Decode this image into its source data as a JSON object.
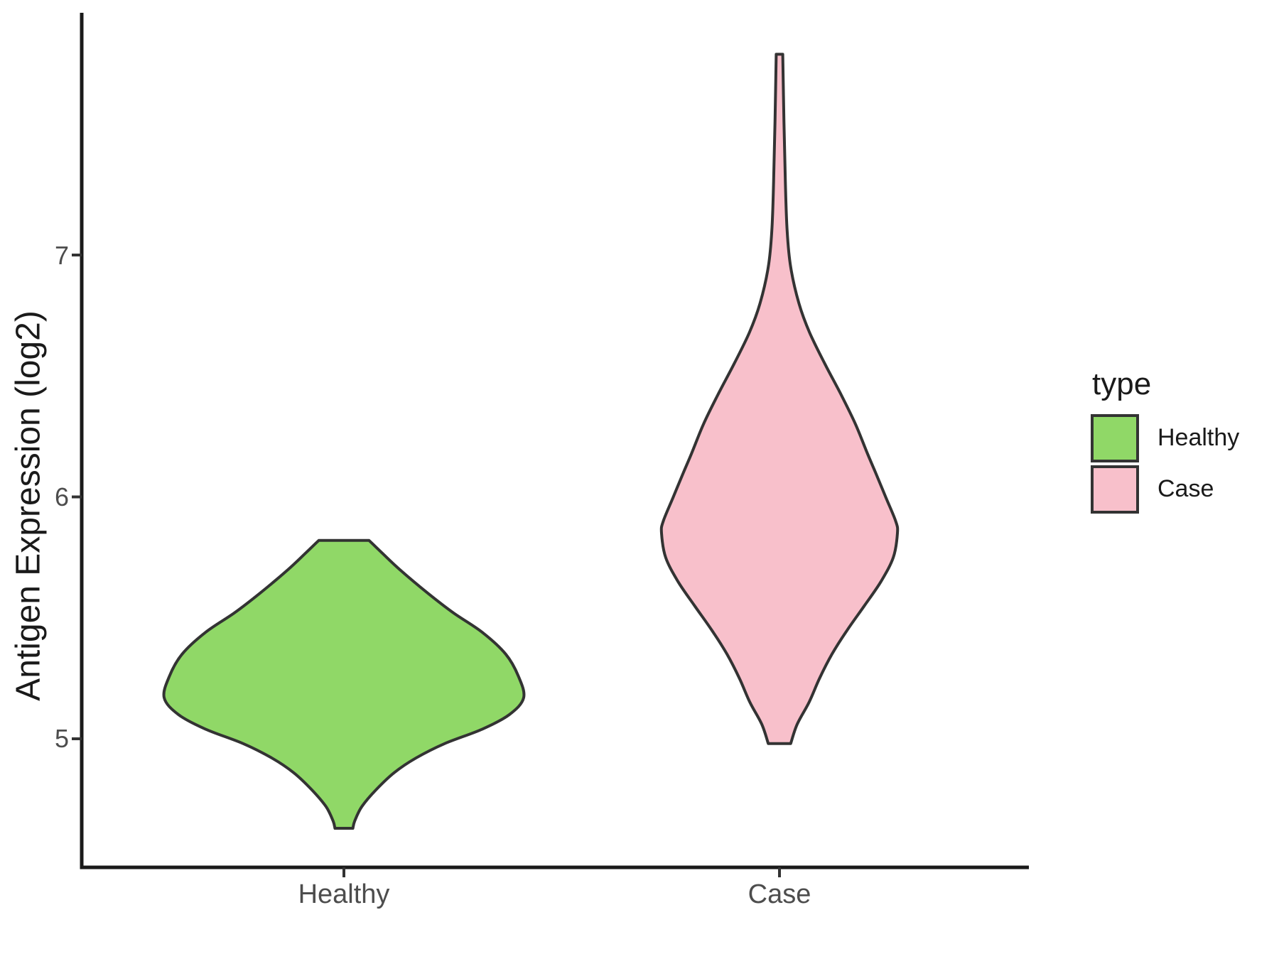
{
  "window": {
    "background": "#FFFFFF"
  },
  "axis_style": {
    "line_color": "#1A1A1A",
    "tick_color": "#333333",
    "tick_label_color": "#4D4D4D",
    "title_color": "#1A1A1A"
  },
  "chart_data": {
    "type": "violin",
    "title": "",
    "xlabel": "",
    "ylabel": "Antigen Expression (log2)",
    "categories": [
      "Healthy",
      "Case"
    ],
    "y_ticks": [
      5,
      6,
      7
    ],
    "ylim": [
      4.45,
      8.0
    ],
    "grid": false,
    "legend": {
      "title": "type",
      "position": "right"
    },
    "series": [
      {
        "name": "Healthy",
        "fill": "#90D867",
        "outline": "#333333",
        "value_range": [
          4.63,
          5.82
        ],
        "peak_value": 5.17,
        "profile": [
          [
            5.82,
            0.14
          ],
          [
            5.77,
            0.21
          ],
          [
            5.7,
            0.31
          ],
          [
            5.6,
            0.47
          ],
          [
            5.52,
            0.61
          ],
          [
            5.44,
            0.77
          ],
          [
            5.35,
            0.9
          ],
          [
            5.26,
            0.97
          ],
          [
            5.17,
            1.0
          ],
          [
            5.1,
            0.92
          ],
          [
            5.04,
            0.77
          ],
          [
            4.98,
            0.56
          ],
          [
            4.92,
            0.4
          ],
          [
            4.86,
            0.28
          ],
          [
            4.79,
            0.18
          ],
          [
            4.72,
            0.1
          ],
          [
            4.66,
            0.06
          ],
          [
            4.63,
            0.05
          ]
        ]
      },
      {
        "name": "Case",
        "fill": "#F8C0CB",
        "outline": "#333333",
        "value_range": [
          4.98,
          7.83
        ],
        "peak_value": 5.85,
        "profile": [
          [
            7.83,
            0.028
          ],
          [
            7.55,
            0.038
          ],
          [
            7.3,
            0.05
          ],
          [
            7.1,
            0.065
          ],
          [
            6.95,
            0.095
          ],
          [
            6.8,
            0.165
          ],
          [
            6.68,
            0.255
          ],
          [
            6.55,
            0.385
          ],
          [
            6.42,
            0.525
          ],
          [
            6.3,
            0.645
          ],
          [
            6.18,
            0.745
          ],
          [
            6.1,
            0.815
          ],
          [
            6.0,
            0.9
          ],
          [
            5.9,
            0.985
          ],
          [
            5.85,
            1.0
          ],
          [
            5.75,
            0.965
          ],
          [
            5.65,
            0.86
          ],
          [
            5.55,
            0.72
          ],
          [
            5.45,
            0.575
          ],
          [
            5.35,
            0.445
          ],
          [
            5.25,
            0.34
          ],
          [
            5.15,
            0.25
          ],
          [
            5.06,
            0.15
          ],
          [
            4.98,
            0.095
          ]
        ]
      }
    ]
  }
}
